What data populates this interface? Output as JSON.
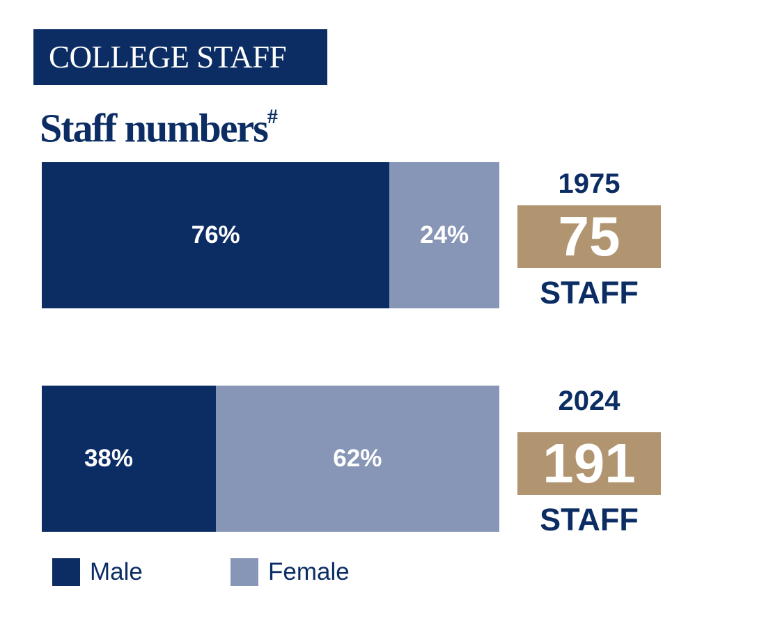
{
  "header": {
    "section_tag": "COLLEGE STAFF",
    "title": "Staff numbers",
    "title_marker": "#"
  },
  "colors": {
    "male": "#0b2d63",
    "female": "#8795b7",
    "count_box": "#b09570",
    "text": "#0b2d63"
  },
  "chart_data": {
    "type": "bar",
    "orientation": "horizontal",
    "stacked": "100%",
    "title": "Staff numbers",
    "categories": [
      "1975",
      "2024"
    ],
    "series": [
      {
        "name": "Male",
        "values": [
          76,
          38
        ],
        "labels": [
          "76%",
          "38%"
        ]
      },
      {
        "name": "Female",
        "values": [
          24,
          62
        ],
        "labels": [
          "24%",
          "62%"
        ]
      }
    ],
    "totals": [
      {
        "year": "1975",
        "count": "75",
        "unit": "STAFF"
      },
      {
        "year": "2024",
        "count": "191",
        "unit": "STAFF"
      }
    ],
    "legend_position": "bottom-left",
    "grid": false
  }
}
